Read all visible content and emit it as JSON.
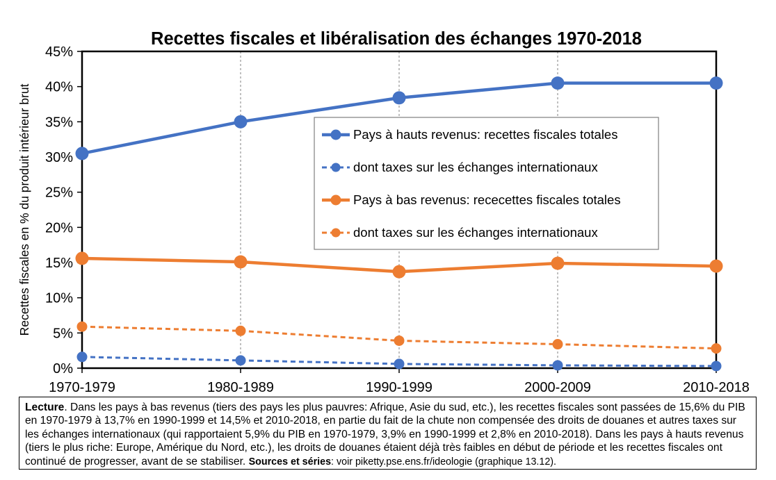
{
  "chart_data": {
    "type": "line",
    "title": "Recettes fiscales et libéralisation des échanges 1970-2018",
    "xlabel": "",
    "ylabel": "Recettes fiscales en % du produit intérieur brut",
    "categories": [
      "1970-1979",
      "1980-1989",
      "1990-1999",
      "2000-2009",
      "2010-2018"
    ],
    "ylim": [
      0,
      45
    ],
    "yticks": [
      0,
      5,
      10,
      15,
      20,
      25,
      30,
      35,
      40,
      45
    ],
    "ytick_labels": [
      "0%",
      "5%",
      "10%",
      "15%",
      "20%",
      "25%",
      "30%",
      "35%",
      "40%",
      "45%"
    ],
    "grid": "vertical dashed",
    "legend_position": "center-right",
    "series": [
      {
        "name": "Pays à hauts revenus: recettes fiscales totales",
        "values": [
          30.5,
          35.0,
          38.4,
          40.5,
          40.5
        ],
        "color": "#4472C4",
        "style": "solid"
      },
      {
        "name": "dont taxes sur les échanges internationaux",
        "values": [
          1.6,
          1.1,
          0.6,
          0.4,
          0.3
        ],
        "color": "#4472C4",
        "style": "dashed"
      },
      {
        "name": "Pays à bas revenus: rececettes fiscales totales",
        "values": [
          15.6,
          15.1,
          13.7,
          14.9,
          14.5
        ],
        "color": "#ED7D31",
        "style": "solid"
      },
      {
        "name": "dont taxes sur les échanges internationaux",
        "values": [
          5.9,
          5.3,
          3.9,
          3.4,
          2.8
        ],
        "color": "#ED7D31",
        "style": "dashed"
      }
    ]
  },
  "note": {
    "lead": "Lecture",
    "body": ". Dans les pays à bas revenus (tiers des pays les plus pauvres: Afrique, Asie du sud, etc.), les recettes fiscales sont passées de 15,6% du PIB en 1970-1979 à 13,7% en 1990-1999 et 14,5% et 2010-2018, en partie du fait de la chute non compensée des droits de douanes et autres taxes sur les échanges internationaux (qui rapportaient 5,9% du PIB en 1970-1979, 3,9% en 1990-1999 et 2,8% en 2010-2018). Dans les pays à hauts revenus (tiers le plus riche: Europe, Amérique du Nord, etc.), les droits de douanes étaient déjà très faibles en début de période et les recettes fiscales ont continué de progresser, avant de se stabiliser. ",
    "sources_label": "Sources et séries",
    "sources_text": ": voir piketty.pse.ens.fr/ideologie (graphique 13.12)."
  }
}
